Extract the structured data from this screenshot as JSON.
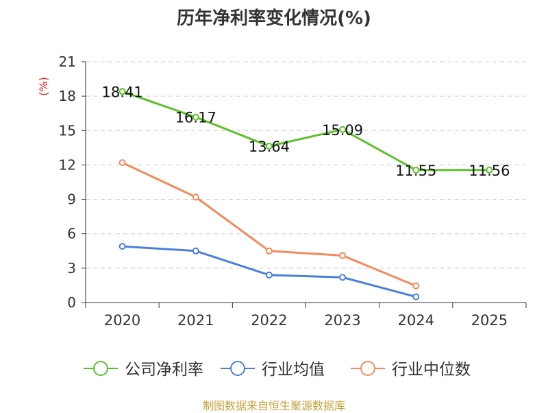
{
  "chart_data": {
    "type": "line",
    "title": "历年净利率变化情况(%)",
    "ylabel": "(%)",
    "xlabel": "",
    "ylim": [
      0,
      21
    ],
    "yticks": [
      0,
      3,
      6,
      9,
      12,
      15,
      18,
      21
    ],
    "categories": [
      "2020",
      "2021",
      "2022",
      "2023",
      "2024",
      "2025"
    ],
    "grid": true,
    "legend_position": "bottom",
    "series": [
      {
        "name": "公司净利率",
        "color": "#5cc12b",
        "values": [
          18.41,
          16.17,
          13.64,
          15.09,
          11.55,
          11.56
        ],
        "labels": [
          "18.41",
          "16.17",
          "13.64",
          "15.09",
          "11.55",
          "11.56"
        ]
      },
      {
        "name": "行业均值",
        "color": "#4a7fdc",
        "values": [
          4.9,
          4.5,
          2.4,
          2.2,
          0.5,
          null
        ]
      },
      {
        "name": "行业中位数",
        "color": "#f5895c",
        "values": [
          12.2,
          9.2,
          4.5,
          4.1,
          1.45,
          null
        ]
      }
    ]
  },
  "footer": "制图数据来自恒生聚源数据库"
}
